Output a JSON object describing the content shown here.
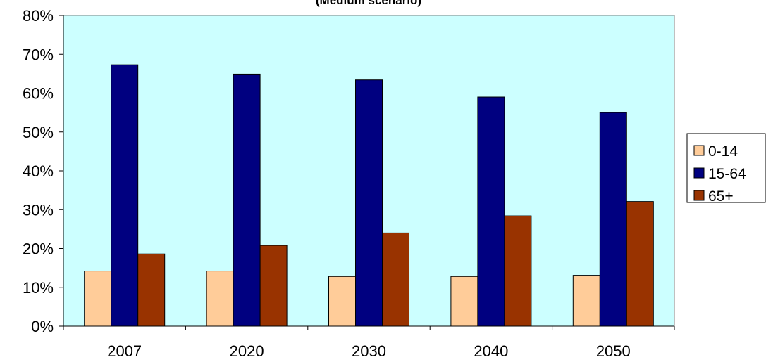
{
  "chart_data": {
    "type": "bar",
    "title": "(Medium scenario)",
    "categories": [
      "2007",
      "2020",
      "2030",
      "2040",
      "2050"
    ],
    "series": [
      {
        "name": "0-14",
        "values": [
          14.2,
          14.2,
          12.8,
          12.8,
          13.1
        ],
        "color": "#ffcc99"
      },
      {
        "name": "15-64",
        "values": [
          67.3,
          64.9,
          63.4,
          59.0,
          55.0
        ],
        "color": "#000080"
      },
      {
        "name": "65+",
        "values": [
          18.6,
          20.8,
          24.0,
          28.4,
          32.1
        ],
        "color": "#993300"
      }
    ],
    "ylim": [
      0,
      80
    ],
    "yticks": [
      0,
      10,
      20,
      30,
      40,
      50,
      60,
      70,
      80
    ],
    "ytick_format": "percent",
    "plot_background": "#ccffff",
    "grid": false,
    "legend_position": "right"
  }
}
